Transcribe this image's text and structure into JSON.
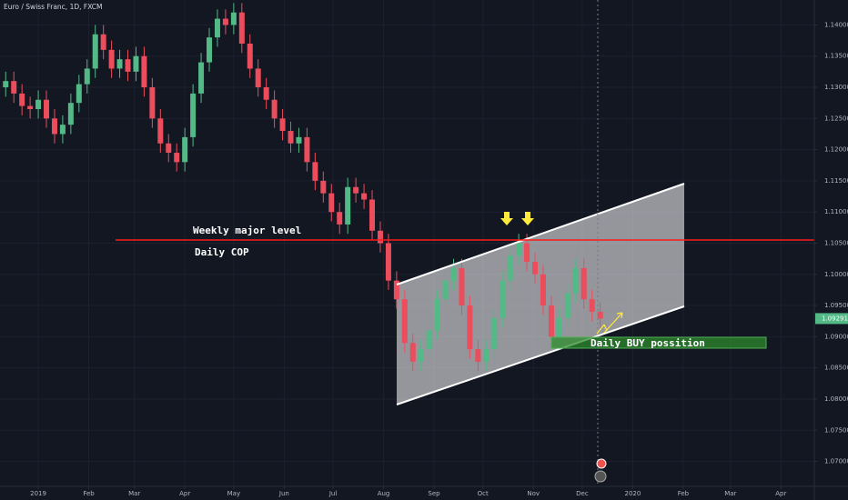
{
  "chart_data": {
    "type": "candlestick",
    "title": "Euro / Swiss Franc, 1D, FXCM",
    "x": [
      -20,
      -15,
      -10,
      -5,
      0,
      5,
      10,
      15,
      20,
      25,
      30,
      35,
      40,
      45,
      50,
      55,
      60,
      65,
      70,
      75,
      80,
      85,
      90,
      95,
      100,
      105,
      110,
      115,
      120,
      125,
      130,
      135,
      140,
      145,
      150,
      155,
      160,
      165,
      170,
      175,
      180,
      185,
      190,
      195,
      200,
      205,
      210,
      215,
      220,
      225,
      230,
      235,
      240,
      245,
      250,
      255,
      260,
      265,
      270,
      275,
      280,
      285,
      290,
      295,
      300,
      305,
      310,
      315,
      320,
      325,
      330,
      335,
      340,
      345
    ],
    "open": [
      1.13,
      1.131,
      1.129,
      1.127,
      1.1265,
      1.128,
      1.125,
      1.1225,
      1.124,
      1.1275,
      1.1305,
      1.133,
      1.1385,
      1.136,
      1.133,
      1.1345,
      1.1325,
      1.135,
      1.13,
      1.125,
      1.121,
      1.1195,
      1.118,
      1.122,
      1.129,
      1.134,
      1.138,
      1.141,
      1.14,
      1.142,
      1.137,
      1.133,
      1.13,
      1.128,
      1.125,
      1.123,
      1.121,
      1.122,
      1.118,
      1.115,
      1.113,
      1.11,
      1.108,
      1.114,
      1.113,
      1.112,
      1.107,
      1.105,
      1.099,
      1.096,
      1.089,
      1.086,
      1.088,
      1.091,
      1.096,
      1.099,
      1.101,
      1.095,
      1.088,
      1.086,
      1.088,
      1.093,
      1.099,
      1.103,
      1.105,
      1.102,
      1.1,
      1.095,
      1.09,
      1.093,
      1.097,
      1.101,
      1.096,
      1.094
    ],
    "high": [
      1.1325,
      1.1325,
      1.1305,
      1.1285,
      1.1295,
      1.1295,
      1.1265,
      1.1255,
      1.129,
      1.132,
      1.1345,
      1.14,
      1.14,
      1.1375,
      1.136,
      1.136,
      1.1365,
      1.1365,
      1.1315,
      1.1265,
      1.1225,
      1.121,
      1.1235,
      1.1305,
      1.1355,
      1.1395,
      1.1425,
      1.1425,
      1.1435,
      1.1435,
      1.1385,
      1.1345,
      1.1315,
      1.1295,
      1.1265,
      1.1245,
      1.1235,
      1.1235,
      1.1195,
      1.1165,
      1.1145,
      1.1115,
      1.1155,
      1.1155,
      1.1145,
      1.1135,
      1.1085,
      1.1065,
      1.1005,
      1.0975,
      1.0905,
      1.0895,
      1.0925,
      1.0975,
      1.1005,
      1.1025,
      1.1025,
      1.0965,
      1.0895,
      1.0895,
      1.0945,
      1.1005,
      1.1045,
      1.1065,
      1.1065,
      1.1035,
      1.1015,
      1.0965,
      1.0945,
      1.0985,
      1.1025,
      1.1025,
      1.0975,
      1.0955
    ],
    "low": [
      1.1285,
      1.1275,
      1.1255,
      1.125,
      1.125,
      1.1235,
      1.121,
      1.121,
      1.1225,
      1.126,
      1.129,
      1.1315,
      1.1345,
      1.1315,
      1.1315,
      1.131,
      1.131,
      1.1285,
      1.1235,
      1.1195,
      1.118,
      1.1165,
      1.1165,
      1.1205,
      1.1275,
      1.1325,
      1.1365,
      1.1385,
      1.1385,
      1.1355,
      1.1315,
      1.1285,
      1.1265,
      1.1235,
      1.1215,
      1.1195,
      1.1195,
      1.1165,
      1.1135,
      1.1115,
      1.1085,
      1.1065,
      1.1065,
      1.1115,
      1.1105,
      1.1055,
      1.1035,
      1.0975,
      1.0945,
      1.0875,
      1.0845,
      1.0845,
      1.0865,
      1.0895,
      1.0945,
      1.0975,
      1.0935,
      1.0865,
      1.0845,
      1.0845,
      1.0865,
      1.0915,
      1.0975,
      1.1015,
      1.1005,
      1.0985,
      1.0935,
      1.0885,
      1.0885,
      1.0915,
      1.0955,
      1.0945,
      1.0925,
      1.0914
    ],
    "close": [
      1.131,
      1.129,
      1.127,
      1.1265,
      1.128,
      1.125,
      1.1225,
      1.124,
      1.1275,
      1.1305,
      1.133,
      1.1385,
      1.136,
      1.133,
      1.1345,
      1.1325,
      1.135,
      1.13,
      1.125,
      1.121,
      1.1195,
      1.118,
      1.122,
      1.129,
      1.134,
      1.138,
      1.141,
      1.14,
      1.142,
      1.137,
      1.133,
      1.13,
      1.128,
      1.125,
      1.123,
      1.121,
      1.122,
      1.118,
      1.115,
      1.113,
      1.11,
      1.108,
      1.114,
      1.113,
      1.112,
      1.107,
      1.105,
      1.099,
      1.096,
      1.089,
      1.086,
      1.088,
      1.091,
      1.096,
      1.099,
      1.101,
      1.095,
      1.088,
      1.086,
      1.088,
      1.093,
      1.099,
      1.103,
      1.105,
      1.102,
      1.1,
      1.095,
      1.09,
      1.093,
      1.097,
      1.101,
      1.096,
      1.094,
      1.0929
    ],
    "up_color": "#53b987",
    "down_color": "#eb4d5c",
    "last_price": 1.09291,
    "xlim": [
      -23.5,
      476.5
    ],
    "xticks": [
      {
        "value": 0,
        "label": "2019"
      },
      {
        "value": 31,
        "label": "Feb"
      },
      {
        "value": 59,
        "label": "Mar"
      },
      {
        "value": 90,
        "label": "Apr"
      },
      {
        "value": 120,
        "label": "May"
      },
      {
        "value": 151,
        "label": "Jun"
      },
      {
        "value": 181,
        "label": "Jul"
      },
      {
        "value": 212,
        "label": "Aug"
      },
      {
        "value": 243,
        "label": "Sep"
      },
      {
        "value": 273,
        "label": "Oct"
      },
      {
        "value": 304,
        "label": "Nov"
      },
      {
        "value": 334,
        "label": "Dec"
      },
      {
        "value": 365,
        "label": "2020"
      },
      {
        "value": 396,
        "label": "Feb"
      },
      {
        "value": 425,
        "label": "Mar"
      },
      {
        "value": 456,
        "label": "Apr"
      }
    ],
    "ylim": [
      1.066,
      1.144
    ],
    "yticks": [
      {
        "value": 1.07,
        "label": "1.07000"
      },
      {
        "value": 1.075,
        "label": "1.07500"
      },
      {
        "value": 1.08,
        "label": "1.08000"
      },
      {
        "value": 1.085,
        "label": "1.08500"
      },
      {
        "value": 1.09,
        "label": "1.09000"
      },
      {
        "value": 1.095,
        "label": "1.09500"
      },
      {
        "value": 1.1,
        "label": "1.10000"
      },
      {
        "value": 1.105,
        "label": "1.10500"
      },
      {
        "value": 1.11,
        "label": "1.11000"
      },
      {
        "value": 1.115,
        "label": "1.11500"
      },
      {
        "value": 1.12,
        "label": "1.12000"
      },
      {
        "value": 1.125,
        "label": "1.12500"
      },
      {
        "value": 1.13,
        "label": "1.13000"
      },
      {
        "value": 1.135,
        "label": "1.13500"
      },
      {
        "value": 1.14,
        "label": "1.14000"
      }
    ],
    "grid": true,
    "annotations": [
      "Weekly major level",
      "Daily COP",
      "Daily BUY possition"
    ]
  }
}
